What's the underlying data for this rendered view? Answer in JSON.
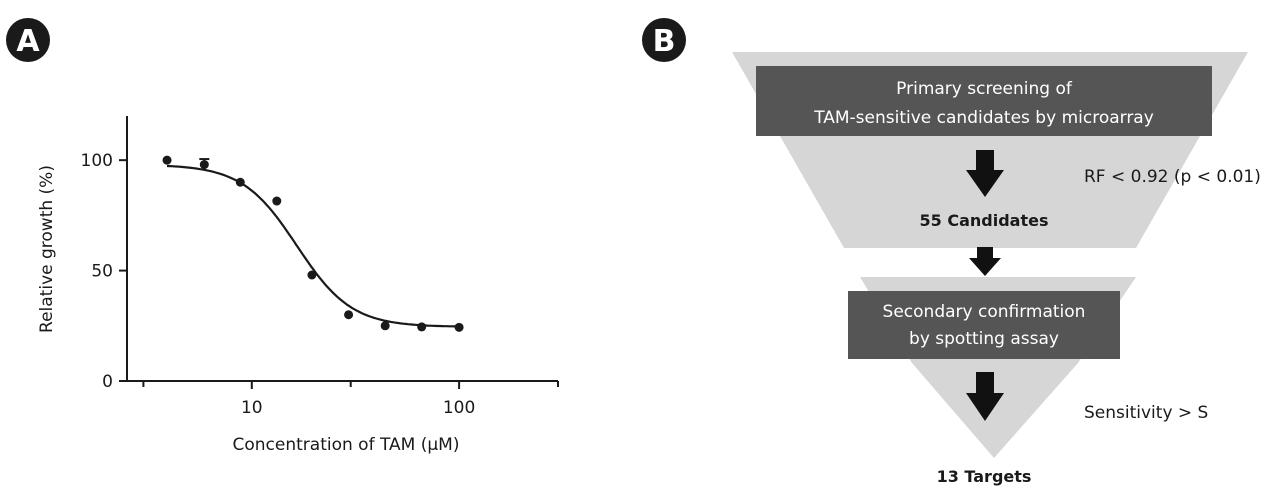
{
  "panel_a": {
    "label": "A"
  },
  "panel_b": {
    "label": "B",
    "boxes": [
      {
        "lines": [
          "Primary screening of",
          "TAM-sensitive candidates by microarray"
        ]
      },
      {
        "lines": [
          "Secondary confirmation",
          "by spotting assay"
        ]
      }
    ],
    "counts": [
      "55 Candidates",
      "13 Targets"
    ],
    "criteria": [
      "RF < 0.92 (p < 0.01)",
      "Sensitivity > S"
    ],
    "colors": {
      "funnel": "#d6d6d6",
      "box": "#555555",
      "arrow": "#111111"
    }
  },
  "chart_data": {
    "type": "scatter",
    "xlabel": "Concentration of TAM (μM)",
    "ylabel": "Relative growth (%)",
    "x_scale": "log",
    "xlim": [
      2.5,
      300
    ],
    "ylim": [
      0,
      120
    ],
    "x_ticks": [
      10,
      100
    ],
    "x_tick_labels": [
      "10",
      "100"
    ],
    "y_ticks": [
      0,
      50,
      100
    ],
    "y_tick_labels": [
      "0",
      "50",
      "100"
    ],
    "grid": false,
    "points": [
      {
        "x": 3.9,
        "y": 100
      },
      {
        "x": 5.9,
        "y": 98,
        "err": 2.5
      },
      {
        "x": 8.8,
        "y": 90
      },
      {
        "x": 13.2,
        "y": 81.5
      },
      {
        "x": 19.5,
        "y": 48
      },
      {
        "x": 29.3,
        "y": 30
      },
      {
        "x": 44,
        "y": 25
      },
      {
        "x": 66,
        "y": 24.5
      },
      {
        "x": 100,
        "y": 24.3
      }
    ],
    "fit": {
      "model": "sigmoid",
      "top": 98,
      "bottom": 24.5,
      "ic50": 16.5,
      "hill": 3.3
    }
  }
}
